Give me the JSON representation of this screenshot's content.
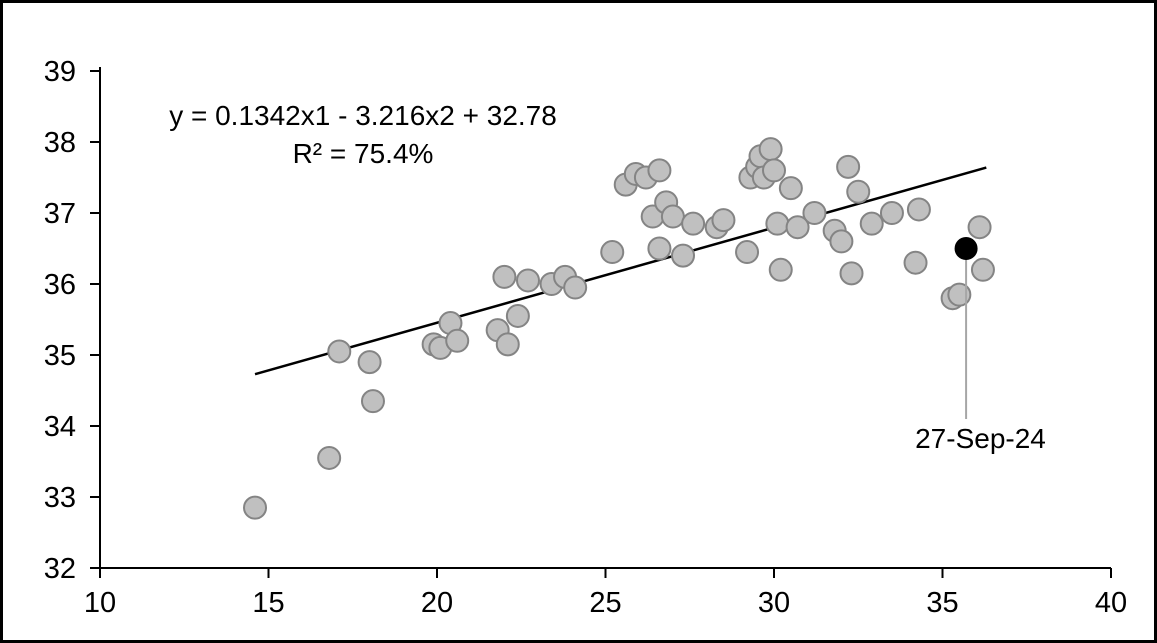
{
  "chart_data": {
    "type": "scatter",
    "title": "",
    "xlabel": "",
    "ylabel": "",
    "xlim": [
      10,
      40
    ],
    "ylim": [
      32,
      39
    ],
    "x_ticks": [
      10,
      15,
      20,
      25,
      30,
      35,
      40
    ],
    "y_ticks": [
      32,
      33,
      34,
      35,
      36,
      37,
      38,
      39
    ],
    "grid": false,
    "legend": "none",
    "annotation": {
      "equation": "y = 0.1342x1 - 3.216x2 + 32.78",
      "r_squared": "R² = 75.4%"
    },
    "points": [
      [
        14.6,
        32.85
      ],
      [
        16.8,
        33.55
      ],
      [
        17.1,
        35.05
      ],
      [
        18.0,
        34.9
      ],
      [
        18.1,
        34.35
      ],
      [
        19.9,
        35.15
      ],
      [
        20.1,
        35.1
      ],
      [
        20.4,
        35.45
      ],
      [
        20.6,
        35.2
      ],
      [
        21.8,
        35.35
      ],
      [
        22.0,
        36.1
      ],
      [
        22.1,
        35.15
      ],
      [
        22.4,
        35.55
      ],
      [
        22.7,
        36.05
      ],
      [
        23.4,
        36.0
      ],
      [
        23.8,
        36.1
      ],
      [
        24.1,
        35.95
      ],
      [
        25.2,
        36.45
      ],
      [
        25.6,
        37.4
      ],
      [
        25.9,
        37.55
      ],
      [
        26.2,
        37.5
      ],
      [
        26.4,
        36.95
      ],
      [
        26.6,
        37.6
      ],
      [
        26.6,
        36.5
      ],
      [
        26.8,
        37.15
      ],
      [
        27.0,
        36.95
      ],
      [
        27.3,
        36.4
      ],
      [
        27.6,
        36.85
      ],
      [
        28.3,
        36.8
      ],
      [
        28.5,
        36.9
      ],
      [
        29.2,
        36.45
      ],
      [
        29.3,
        37.5
      ],
      [
        29.5,
        37.65
      ],
      [
        29.6,
        37.8
      ],
      [
        29.7,
        37.5
      ],
      [
        29.9,
        37.9
      ],
      [
        30.0,
        37.6
      ],
      [
        30.1,
        36.85
      ],
      [
        30.2,
        36.2
      ],
      [
        30.5,
        37.35
      ],
      [
        30.7,
        36.8
      ],
      [
        31.2,
        37.0
      ],
      [
        31.8,
        36.75
      ],
      [
        32.0,
        36.6
      ],
      [
        32.2,
        37.65
      ],
      [
        32.3,
        36.15
      ],
      [
        32.5,
        37.3
      ],
      [
        32.9,
        36.85
      ],
      [
        33.5,
        37.0
      ],
      [
        34.2,
        36.3
      ],
      [
        34.3,
        37.05
      ],
      [
        35.3,
        35.8
      ],
      [
        35.5,
        35.85
      ],
      [
        36.1,
        36.8
      ],
      [
        36.2,
        36.2
      ]
    ],
    "trendline": {
      "x": [
        14.6,
        36.3
      ],
      "y": [
        34.73,
        37.64
      ]
    },
    "highlight_point": {
      "x": 35.7,
      "y": 36.5,
      "label": "27-Sep-24"
    },
    "colors": {
      "point_fill": "#c0c0c0",
      "point_stroke": "#848484",
      "highlight_fill": "#000000",
      "trendline": "#000000",
      "leader_line": "#a6a6a6",
      "axis": "#000000",
      "text": "#000000"
    }
  }
}
